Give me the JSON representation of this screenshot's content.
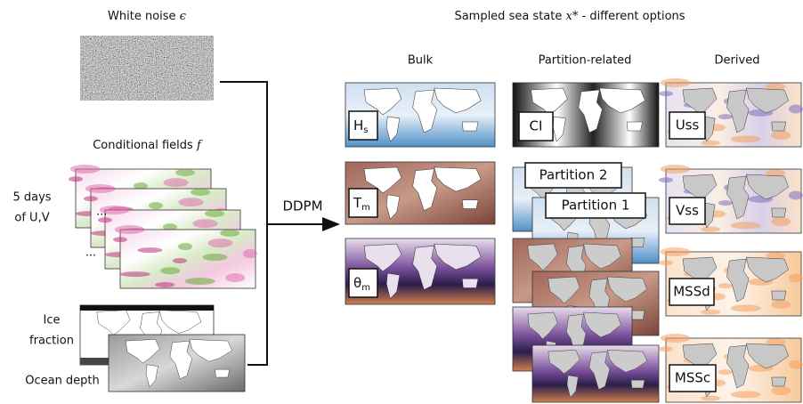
{
  "white_noise": {
    "title": "White noise",
    "symbol": "ϵ"
  },
  "conditional": {
    "title": "Conditional fields",
    "symbol": "f",
    "wind_label_1": "5 days",
    "wind_label_2": "of U,V",
    "dots": "...",
    "ice_label_1": "Ice",
    "ice_label_2": "fraction",
    "depth_label": "Ocean depth"
  },
  "model": {
    "label": "DDPM"
  },
  "output": {
    "title": "Sampled sea state",
    "symbol": "x*",
    "title_rest": " - different options",
    "columns": [
      "Bulk",
      "Partition-related",
      "Derived"
    ],
    "bulk": [
      {
        "main": "H",
        "sub": "s"
      },
      {
        "main": "T",
        "sub": "m"
      },
      {
        "main": "θ",
        "sub": "m"
      }
    ],
    "partition": {
      "ci": "CI",
      "partitions": [
        "Partition 2",
        "Partition 1"
      ]
    },
    "derived": [
      "Uss",
      "Vss",
      "MSSd",
      "MSSc"
    ]
  }
}
